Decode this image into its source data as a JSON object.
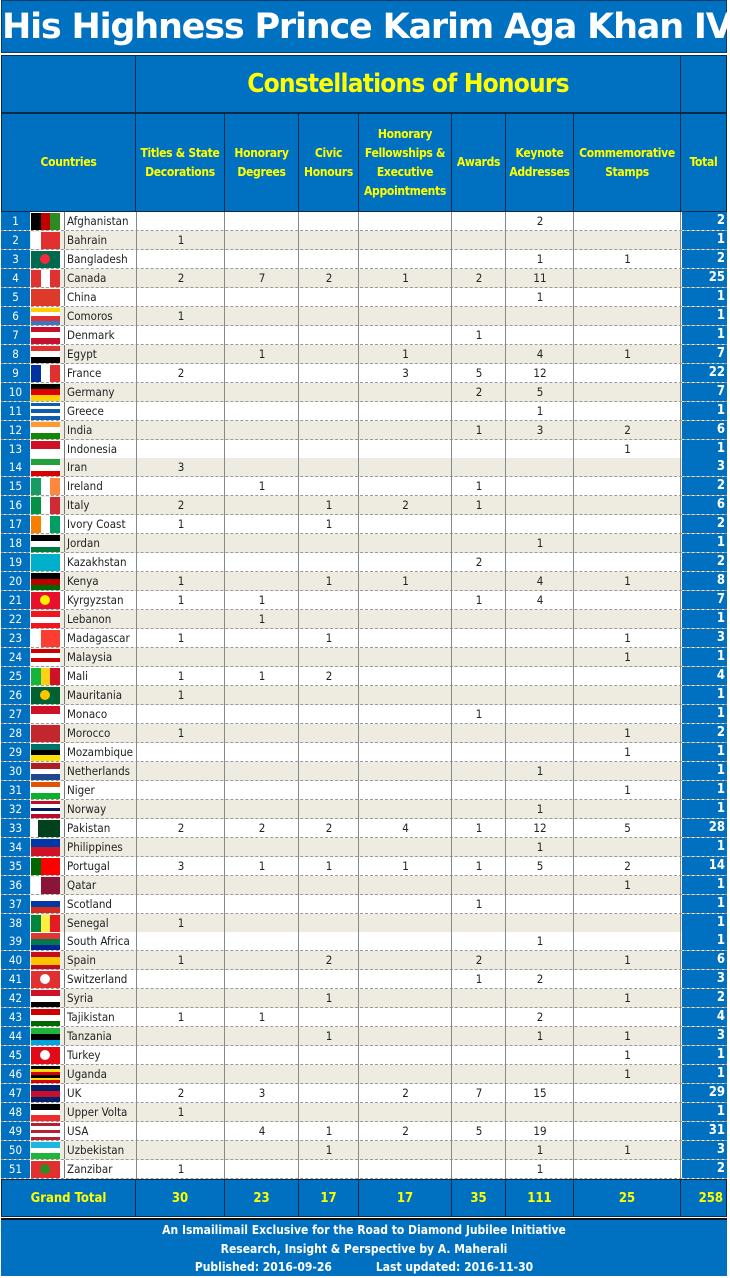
{
  "title": "His Highness Prince Karim Aga Khan IV",
  "subtitle": "Constellations of Honours",
  "colors": {
    "header_bg": "#0070c0",
    "header_text": "#ffff00",
    "title_text": "#ffffff",
    "row_alt": "#eeece1"
  },
  "columns": {
    "countries": "Countries",
    "titles": "Titles & State Decorations",
    "degrees": "Honorary Degrees",
    "civic": "Civic Honours",
    "fellowships": "Honorary Fellowships & Executive Appointments",
    "awards": "Awards",
    "keynote": "Keynote Addresses",
    "stamps": "Commemorative Stamps",
    "total": "Total"
  },
  "rows": [
    {
      "n": "1",
      "country": "Afghanistan",
      "flag": [
        "v",
        "#000000",
        "#c00000",
        "#2e8b22"
      ],
      "v": [
        "",
        "",
        "",
        "",
        "",
        "2",
        "",
        "2"
      ]
    },
    {
      "n": "2",
      "country": "Bahrain",
      "flag": [
        "v",
        "#ffffff",
        "#e03030",
        "#e03030"
      ],
      "v": [
        "1",
        "",
        "",
        "",
        "",
        "",
        "",
        "1"
      ]
    },
    {
      "n": "3",
      "country": "Bangladesh",
      "flag": [
        "c",
        "#006a4e",
        "#f42a41"
      ],
      "v": [
        "",
        "",
        "",
        "",
        "",
        "1",
        "1",
        "2"
      ]
    },
    {
      "n": "4",
      "country": "Canada",
      "flag": [
        "v",
        "#e03030",
        "#ffffff",
        "#e03030"
      ],
      "v": [
        "2",
        "7",
        "2",
        "1",
        "2",
        "11",
        "",
        "25"
      ]
    },
    {
      "n": "5",
      "country": "China",
      "flag": [
        "h",
        "#de3a2a"
      ],
      "v": [
        "",
        "",
        "",
        "",
        "",
        "1",
        "",
        "1"
      ]
    },
    {
      "n": "6",
      "country": "Comoros",
      "flag": [
        "h",
        "#ffd000",
        "#ffffff",
        "#e03030",
        "#3a75c4"
      ],
      "v": [
        "1",
        "",
        "",
        "",
        "",
        "",
        "",
        "1"
      ]
    },
    {
      "n": "7",
      "country": "Denmark",
      "flag": [
        "h",
        "#c8102e",
        "#ffffff",
        "#c8102e"
      ],
      "v": [
        "",
        "",
        "",
        "",
        "1",
        "",
        "",
        "1"
      ]
    },
    {
      "n": "8",
      "country": "Egypt",
      "flag": [
        "h",
        "#e03030",
        "#ffffff",
        "#000000"
      ],
      "v": [
        "",
        "1",
        "",
        "1",
        "",
        "4",
        "1",
        "7"
      ]
    },
    {
      "n": "9",
      "country": "France",
      "flag": [
        "v",
        "#0033a0",
        "#ffffff",
        "#e03030"
      ],
      "v": [
        "2",
        "",
        "",
        "3",
        "5",
        "12",
        "",
        "22"
      ]
    },
    {
      "n": "10",
      "country": "Germany",
      "flag": [
        "h",
        "#000000",
        "#dd0000",
        "#ffce00"
      ],
      "v": [
        "",
        "",
        "",
        "",
        "2",
        "5",
        "",
        "7"
      ]
    },
    {
      "n": "11",
      "country": "Greece",
      "flag": [
        "h",
        "#0d5eaf",
        "#ffffff",
        "#0d5eaf",
        "#ffffff",
        "#0d5eaf"
      ],
      "v": [
        "",
        "",
        "",
        "",
        "",
        "1",
        "",
        "1"
      ]
    },
    {
      "n": "12",
      "country": "India",
      "flag": [
        "h",
        "#ff9933",
        "#ffffff",
        "#138808"
      ],
      "v": [
        "",
        "",
        "",
        "",
        "1",
        "3",
        "2",
        "6"
      ]
    },
    {
      "n": "13",
      "country": "Indonesia",
      "flag": [
        "h",
        "#ce1126",
        "#ffffff"
      ],
      "v": [
        "",
        "",
        "",
        "",
        "",
        "",
        "1",
        "1"
      ]
    },
    {
      "n": "14",
      "country": "Iran",
      "flag": [
        "h",
        "#239f40",
        "#ffffff",
        "#da0000"
      ],
      "v": [
        "3",
        "",
        "",
        "",
        "",
        "",
        "",
        "3"
      ]
    },
    {
      "n": "15",
      "country": "Ireland",
      "flag": [
        "v",
        "#169b62",
        "#ffffff",
        "#ff883e"
      ],
      "v": [
        "",
        "1",
        "",
        "",
        "1",
        "",
        "",
        "2"
      ]
    },
    {
      "n": "16",
      "country": "Italy",
      "flag": [
        "v",
        "#009246",
        "#ffffff",
        "#ce2b37"
      ],
      "v": [
        "2",
        "",
        "1",
        "2",
        "1",
        "",
        "",
        "6"
      ]
    },
    {
      "n": "17",
      "country": "Ivory Coast",
      "flag": [
        "v",
        "#f77f00",
        "#ffffff",
        "#009e60"
      ],
      "v": [
        "1",
        "",
        "1",
        "",
        "",
        "",
        "",
        "2"
      ]
    },
    {
      "n": "18",
      "country": "Jordan",
      "flag": [
        "h",
        "#000000",
        "#ffffff",
        "#007a3d"
      ],
      "v": [
        "",
        "",
        "",
        "",
        "",
        "1",
        "",
        "1"
      ]
    },
    {
      "n": "19",
      "country": "Kazakhstan",
      "flag": [
        "h",
        "#00afca"
      ],
      "v": [
        "",
        "",
        "",
        "",
        "2",
        "",
        "",
        "2"
      ]
    },
    {
      "n": "20",
      "country": "Kenya",
      "flag": [
        "h",
        "#000000",
        "#bb0000",
        "#006600"
      ],
      "v": [
        "1",
        "",
        "1",
        "1",
        "",
        "4",
        "1",
        "8"
      ]
    },
    {
      "n": "21",
      "country": "Kyrgyzstan",
      "flag": [
        "c",
        "#e8112d",
        "#ffef00"
      ],
      "v": [
        "1",
        "1",
        "",
        "",
        "1",
        "4",
        "",
        "7"
      ]
    },
    {
      "n": "22",
      "country": "Lebanon",
      "flag": [
        "h",
        "#ee161f",
        "#ffffff",
        "#ee161f"
      ],
      "v": [
        "",
        "1",
        "",
        "",
        "",
        "",
        "",
        "1"
      ]
    },
    {
      "n": "23",
      "country": "Madagascar",
      "flag": [
        "v",
        "#ffffff",
        "#fc3d32",
        "#fc3d32"
      ],
      "v": [
        "1",
        "",
        "1",
        "",
        "",
        "",
        "1",
        "3"
      ]
    },
    {
      "n": "24",
      "country": "Malaysia",
      "flag": [
        "h",
        "#cc0001",
        "#ffffff",
        "#cc0001",
        "#ffffff"
      ],
      "v": [
        "",
        "",
        "",
        "",
        "",
        "",
        "1",
        "1"
      ]
    },
    {
      "n": "25",
      "country": "Mali",
      "flag": [
        "v",
        "#14b53a",
        "#fcd116",
        "#ce1126"
      ],
      "v": [
        "1",
        "1",
        "2",
        "",
        "",
        "",
        "",
        "4"
      ]
    },
    {
      "n": "26",
      "country": "Mauritania",
      "flag": [
        "c",
        "#006233",
        "#ffc400"
      ],
      "v": [
        "1",
        "",
        "",
        "",
        "",
        "",
        "",
        "1"
      ]
    },
    {
      "n": "27",
      "country": "Monaco",
      "flag": [
        "h",
        "#ce1126",
        "#ffffff"
      ],
      "v": [
        "",
        "",
        "",
        "",
        "1",
        "",
        "",
        "1"
      ]
    },
    {
      "n": "28",
      "country": "Morocco",
      "flag": [
        "h",
        "#c1272d"
      ],
      "v": [
        "1",
        "",
        "",
        "",
        "",
        "",
        "1",
        "2"
      ]
    },
    {
      "n": "29",
      "country": "Mozambique",
      "flag": [
        "h",
        "#007168",
        "#000000",
        "#fce100"
      ],
      "v": [
        "",
        "",
        "",
        "",
        "",
        "",
        "1",
        "1"
      ]
    },
    {
      "n": "30",
      "country": "Netherlands",
      "flag": [
        "h",
        "#ae1c28",
        "#ffffff",
        "#21468b"
      ],
      "v": [
        "",
        "",
        "",
        "",
        "",
        "1",
        "",
        "1"
      ]
    },
    {
      "n": "31",
      "country": "Niger",
      "flag": [
        "h",
        "#e05206",
        "#ffffff",
        "#0db02b"
      ],
      "v": [
        "",
        "",
        "",
        "",
        "",
        "",
        "1",
        "1"
      ]
    },
    {
      "n": "32",
      "country": "Norway",
      "flag": [
        "h",
        "#ba0c2f",
        "#ffffff",
        "#00205b",
        "#ffffff",
        "#ba0c2f"
      ],
      "v": [
        "",
        "",
        "",
        "",
        "",
        "1",
        "",
        "1"
      ]
    },
    {
      "n": "33",
      "country": "Pakistan",
      "flag": [
        "v",
        "#ffffff",
        "#01411c",
        "#01411c",
        "#01411c"
      ],
      "v": [
        "2",
        "2",
        "2",
        "4",
        "1",
        "12",
        "5",
        "28"
      ]
    },
    {
      "n": "34",
      "country": "Philippines",
      "flag": [
        "h",
        "#0038a8",
        "#ce1126"
      ],
      "v": [
        "",
        "",
        "",
        "",
        "",
        "1",
        "",
        "1"
      ]
    },
    {
      "n": "35",
      "country": "Portugal",
      "flag": [
        "v",
        "#006600",
        "#ff0000",
        "#ff0000"
      ],
      "v": [
        "3",
        "1",
        "1",
        "1",
        "1",
        "5",
        "2",
        "14"
      ]
    },
    {
      "n": "36",
      "country": "Qatar",
      "flag": [
        "v",
        "#ffffff",
        "#8a1538",
        "#8a1538"
      ],
      "v": [
        "",
        "",
        "",
        "",
        "",
        "",
        "1",
        "1"
      ]
    },
    {
      "n": "37",
      "country": "Scotland",
      "flag": [
        "h",
        "#ffffff",
        "#0039a6",
        "#d52b1e"
      ],
      "v": [
        "",
        "",
        "",
        "",
        "1",
        "",
        "",
        "1"
      ]
    },
    {
      "n": "38",
      "country": "Senegal",
      "flag": [
        "v",
        "#00853f",
        "#fdef42",
        "#e31b23"
      ],
      "v": [
        "1",
        "",
        "",
        "",
        "",
        "",
        "",
        "1"
      ]
    },
    {
      "n": "39",
      "country": "South Africa",
      "flag": [
        "h",
        "#de3831",
        "#007a4d",
        "#002395"
      ],
      "v": [
        "",
        "",
        "",
        "",
        "",
        "1",
        "",
        "1"
      ]
    },
    {
      "n": "40",
      "country": "Spain",
      "flag": [
        "h",
        "#c60b1e",
        "#ffc400",
        "#ffc400",
        "#c60b1e"
      ],
      "v": [
        "1",
        "",
        "2",
        "",
        "2",
        "",
        "1",
        "6"
      ]
    },
    {
      "n": "41",
      "country": "Switzerland",
      "flag": [
        "c",
        "#e03030",
        "#ffffff"
      ],
      "v": [
        "",
        "",
        "",
        "",
        "1",
        "2",
        "",
        "3"
      ]
    },
    {
      "n": "42",
      "country": "Syria",
      "flag": [
        "h",
        "#ce1126",
        "#ffffff",
        "#000000"
      ],
      "v": [
        "",
        "",
        "1",
        "",
        "",
        "",
        "1",
        "2"
      ]
    },
    {
      "n": "43",
      "country": "Tajikistan",
      "flag": [
        "h",
        "#cc0000",
        "#ffffff",
        "#006600"
      ],
      "v": [
        "1",
        "1",
        "",
        "",
        "",
        "2",
        "",
        "4"
      ]
    },
    {
      "n": "44",
      "country": "Tanzania",
      "flag": [
        "h",
        "#1eb53a",
        "#000000",
        "#00a3dd"
      ],
      "v": [
        "",
        "",
        "1",
        "",
        "",
        "1",
        "1",
        "3"
      ]
    },
    {
      "n": "45",
      "country": "Turkey",
      "flag": [
        "c",
        "#e30a17",
        "#ffffff"
      ],
      "v": [
        "",
        "",
        "",
        "",
        "",
        "",
        "1",
        "1"
      ]
    },
    {
      "n": "46",
      "country": "Uganda",
      "flag": [
        "h",
        "#000000",
        "#fcdc04",
        "#d90000",
        "#000000",
        "#fcdc04",
        "#d90000"
      ],
      "v": [
        "",
        "",
        "",
        "",
        "",
        "",
        "1",
        "1"
      ]
    },
    {
      "n": "47",
      "country": "UK",
      "flag": [
        "h",
        "#012169",
        "#c8102e",
        "#012169"
      ],
      "v": [
        "2",
        "3",
        "",
        "2",
        "7",
        "15",
        "",
        "29"
      ]
    },
    {
      "n": "48",
      "country": "Upper Volta",
      "flag": [
        "h",
        "#000000",
        "#ffffff",
        "#ef2b2d"
      ],
      "v": [
        "1",
        "",
        "",
        "",
        "",
        "",
        "",
        "1"
      ]
    },
    {
      "n": "49",
      "country": "USA",
      "flag": [
        "h",
        "#b22234",
        "#ffffff",
        "#b22234",
        "#ffffff",
        "#b22234"
      ],
      "v": [
        "",
        "4",
        "1",
        "2",
        "5",
        "19",
        "",
        "31"
      ]
    },
    {
      "n": "50",
      "country": "Uzbekistan",
      "flag": [
        "h",
        "#1eb5e0",
        "#ffffff",
        "#1eb53a"
      ],
      "v": [
        "",
        "",
        "1",
        "",
        "",
        "1",
        "1",
        "3"
      ]
    },
    {
      "n": "51",
      "country": "Zanzibar",
      "flag": [
        "c",
        "#e03030",
        "#2e8b22"
      ],
      "v": [
        "1",
        "",
        "",
        "",
        "",
        "1",
        "",
        "2"
      ]
    }
  ],
  "grand_total": {
    "label": "Grand  Total",
    "values": [
      "30",
      "23",
      "17",
      "17",
      "35",
      "111",
      "25",
      "258"
    ]
  },
  "footer": {
    "line1": "An Ismailimail Exclusive for the Road to Diamond Jubilee Initiative",
    "line2": "Research, Insight & Perspective by A. Maherali",
    "published": "Published: 2016-09-26",
    "updated": "Last updated: 2016-11-30"
  }
}
